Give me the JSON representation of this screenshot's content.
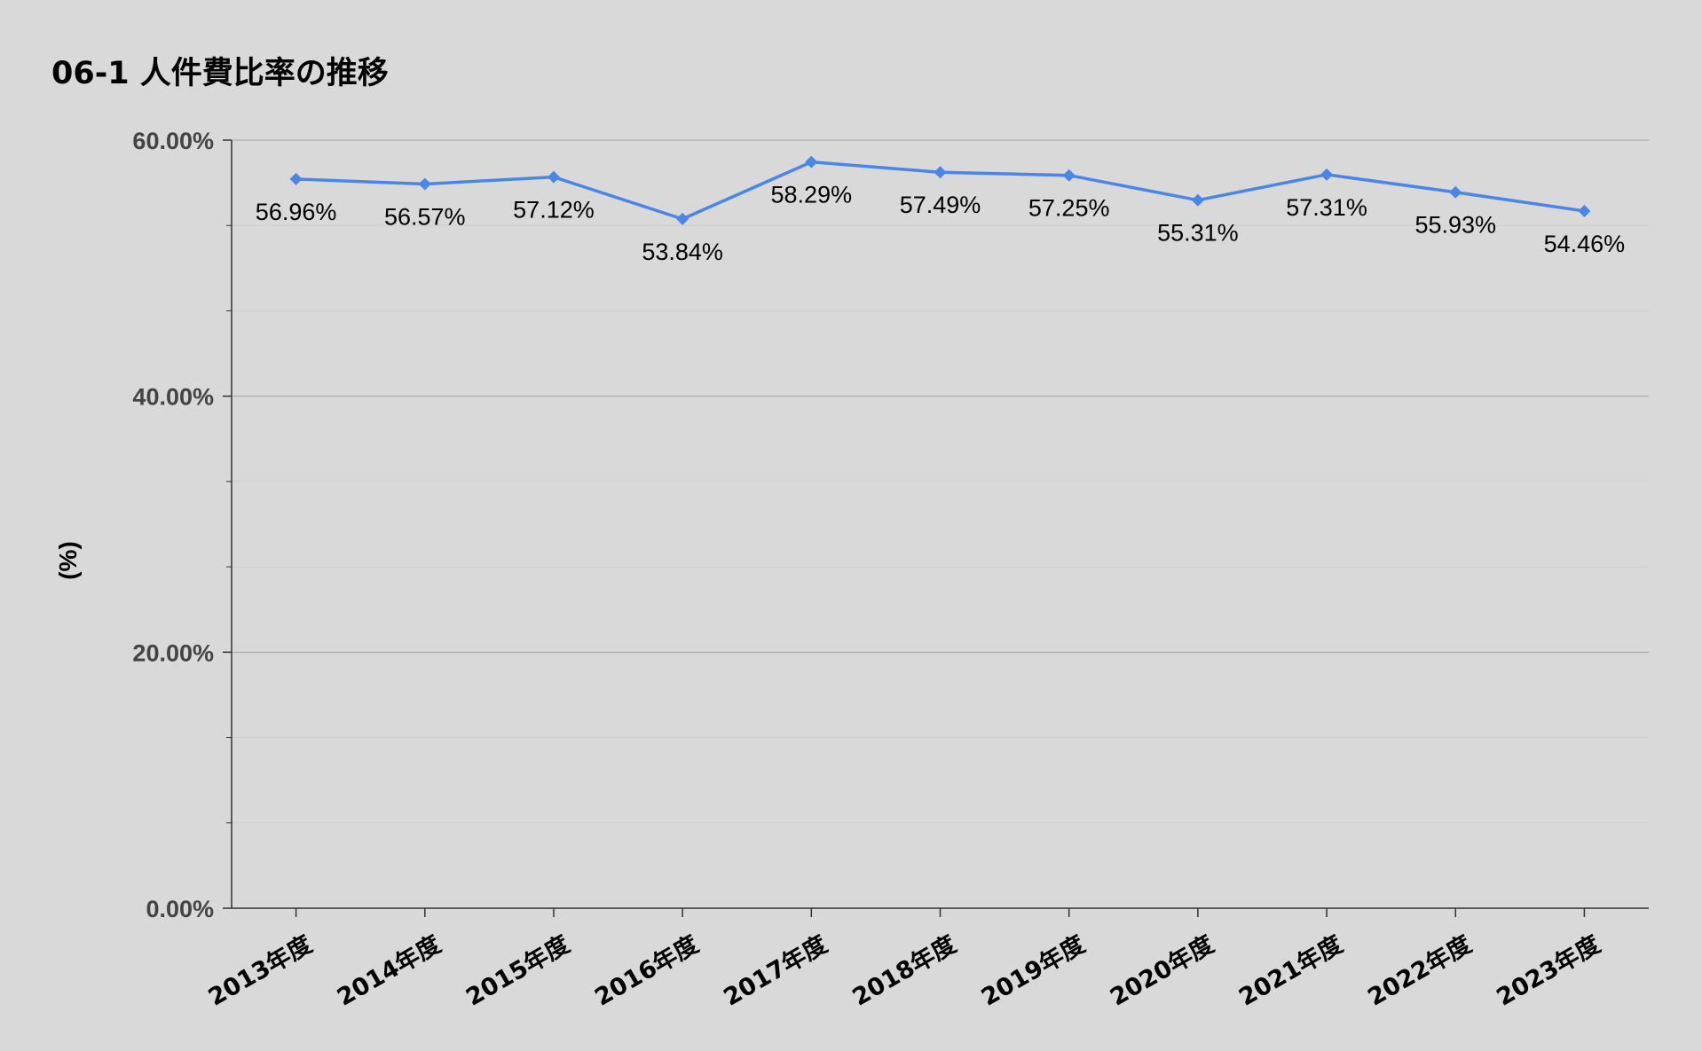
{
  "chart_data": {
    "type": "line",
    "title": "06-1 人件費比率の推移",
    "xlabel": "",
    "ylabel": "(%)",
    "ylim": [
      0,
      60
    ],
    "y_ticks": [
      "0.00%",
      "20.00%",
      "40.00%",
      "60.00%"
    ],
    "y_tick_values": [
      0,
      20,
      40,
      60
    ],
    "categories": [
      "2013年度",
      "2014年度",
      "2015年度",
      "2016年度",
      "2017年度",
      "2018年度",
      "2019年度",
      "2020年度",
      "2021年度",
      "2022年度",
      "2023年度"
    ],
    "values": [
      56.96,
      56.57,
      57.12,
      53.84,
      58.29,
      57.49,
      57.25,
      55.31,
      57.31,
      55.93,
      54.46
    ],
    "data_labels": [
      "56.96%",
      "56.57%",
      "57.12%",
      "53.84%",
      "58.29%",
      "57.49%",
      "57.25%",
      "55.31%",
      "57.31%",
      "55.93%",
      "54.46%"
    ],
    "line_color": "#4a86e8",
    "grid": true,
    "legend": "none"
  }
}
